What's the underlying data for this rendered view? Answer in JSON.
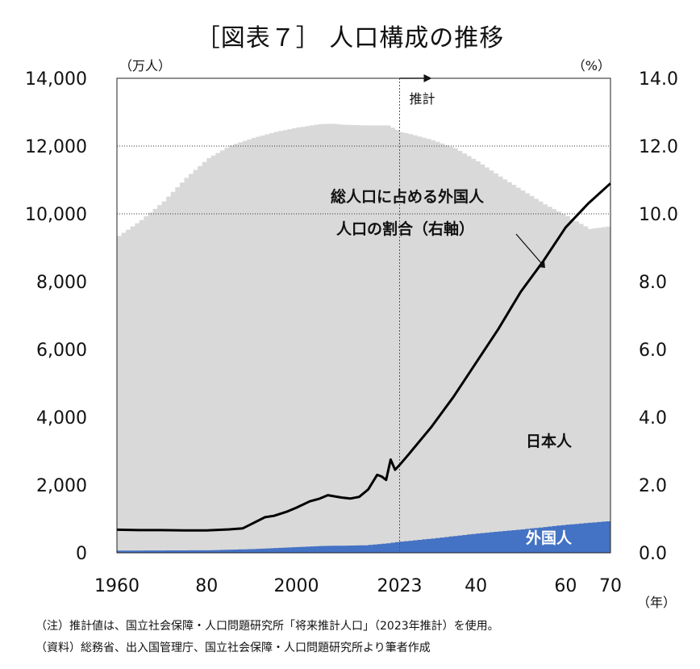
{
  "title": "［図表７］ 人口構成の推移",
  "notes": [
    "（注）推計値は、国立社会保障・人口問題研究所「将来推計人口」（2023年推計）を使用。",
    "（資料）総務省、出入国管理庁、国立社会保障・人口問題研究所より筆者作成"
  ],
  "chart_data": {
    "type": "area",
    "x_range": [
      1960,
      2070
    ],
    "forecast_start": 2023,
    "forecast_label": "推計",
    "left_axis": {
      "unit_label": "（万人）",
      "ylim": [
        0,
        14000
      ],
      "ticks": [
        0,
        2000,
        4000,
        6000,
        8000,
        10000,
        12000,
        14000
      ],
      "tick_labels": [
        "0",
        "2,000",
        "4,000",
        "6,000",
        "8,000",
        "10,000",
        "12,000",
        "14,000"
      ]
    },
    "right_axis": {
      "unit_label": "（%）",
      "ylim": [
        0,
        14
      ],
      "tick_labels": [
        "0.0",
        "2.0",
        "4.0",
        "6.0",
        "8.0",
        "10.0",
        "12.0",
        "14.0"
      ]
    },
    "x_axis": {
      "ticks": [
        1960,
        1980,
        2000,
        2023,
        2040,
        2060,
        2070
      ],
      "tick_labels": [
        "1960",
        "80",
        "2000",
        "2023",
        "40",
        "60",
        "70"
      ],
      "unit_label": "（年）"
    },
    "grid": "horizontal dotted lines at 10,000 and 12,000",
    "colors": {
      "japanese": "#d9d9d9",
      "foreign": "#4472c4",
      "ratio_line": "#000000"
    },
    "series": [
      {
        "name": "日本人",
        "kind": "area",
        "x": [
          1960,
          1965,
          1970,
          1975,
          1980,
          1985,
          1990,
          1995,
          2000,
          2005,
          2008,
          2010,
          2015,
          2020,
          2023,
          2025,
          2030,
          2035,
          2040,
          2045,
          2050,
          2055,
          2060,
          2065,
          2070
        ],
        "values": [
          9280,
          9750,
          10300,
          10990,
          11570,
          11930,
          12130,
          12280,
          12380,
          12450,
          12450,
          12420,
          12390,
          12330,
          12080,
          12000,
          11750,
          11440,
          10980,
          10470,
          10000,
          9520,
          9100,
          8670,
          8700
        ]
      },
      {
        "name": "外国人",
        "kind": "area",
        "x": [
          1960,
          1970,
          1980,
          1990,
          2000,
          2005,
          2010,
          2015,
          2020,
          2023,
          2030,
          2040,
          2050,
          2060,
          2070
        ],
        "values": [
          65,
          70,
          75,
          110,
          170,
          200,
          210,
          220,
          280,
          330,
          420,
          570,
          690,
          830,
          940
        ]
      },
      {
        "name": "総人口に占める外国人人口の割合（右軸）",
        "kind": "line",
        "axis": "right",
        "x": [
          1960,
          1965,
          1970,
          1975,
          1980,
          1985,
          1988,
          1990,
          1993,
          1995,
          1998,
          2000,
          2003,
          2005,
          2007,
          2010,
          2012,
          2014,
          2016,
          2018,
          2019,
          2020,
          2021,
          2022,
          2023,
          2025,
          2030,
          2035,
          2040,
          2045,
          2050,
          2055,
          2060,
          2065,
          2070
        ],
        "values": [
          0.68,
          0.67,
          0.67,
          0.66,
          0.66,
          0.69,
          0.72,
          0.85,
          1.05,
          1.09,
          1.22,
          1.33,
          1.52,
          1.59,
          1.7,
          1.63,
          1.6,
          1.65,
          1.87,
          2.3,
          2.25,
          2.15,
          2.75,
          2.45,
          2.59,
          2.9,
          3.7,
          4.6,
          5.6,
          6.6,
          7.7,
          8.6,
          9.6,
          10.3,
          10.9
        ]
      }
    ],
    "annotations": [
      {
        "text_line1": "総人口に占める外国人",
        "text_line2": "人口の割合（右軸）"
      },
      {
        "text": "日本人"
      },
      {
        "text": "外国人"
      }
    ]
  }
}
